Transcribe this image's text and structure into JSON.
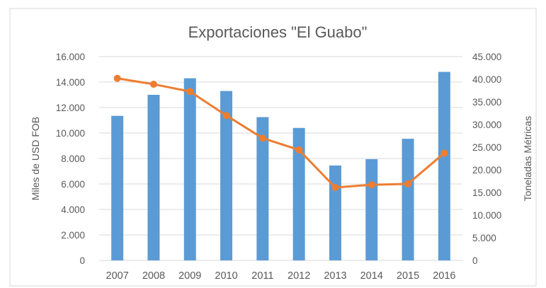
{
  "chart_data": {
    "type": "bar",
    "title": "Exportaciones \"El Guabo\"",
    "categories": [
      "2007",
      "2008",
      "2009",
      "2010",
      "2011",
      "2012",
      "2013",
      "2014",
      "2015",
      "2016"
    ],
    "series": [
      {
        "type": "bar",
        "axis": "left",
        "color": "#5B9BD5",
        "values": [
          11350,
          13000,
          14300,
          13300,
          11250,
          10400,
          7450,
          7950,
          9550,
          14800
        ]
      },
      {
        "type": "line",
        "axis": "right",
        "color": "#ED7D31",
        "markers": "circle",
        "values": [
          40200,
          38900,
          37300,
          32000,
          27000,
          24400,
          16100,
          16700,
          16900,
          23700
        ]
      }
    ],
    "ylabel_left": "Miles de USD FOB",
    "ylabel_right": "Toneladas Métricas",
    "ylim_left": [
      0,
      16000
    ],
    "ylim_right": [
      0,
      45000
    ],
    "yticks_left": {
      "values": [
        0,
        2000,
        4000,
        6000,
        8000,
        10000,
        12000,
        14000,
        16000
      ],
      "labels": [
        "0",
        "2.000",
        "4.000",
        "6.000",
        "8.000",
        "10.000",
        "12.000",
        "14.000",
        "16.000"
      ]
    },
    "yticks_right": {
      "values": [
        0,
        5000,
        10000,
        15000,
        20000,
        25000,
        30000,
        35000,
        40000,
        45000
      ],
      "labels": [
        "0",
        "5.000",
        "10.000",
        "15.000",
        "20.000",
        "25.000",
        "30.000",
        "35.000",
        "40.000",
        "45.000"
      ]
    },
    "grid": true,
    "legend": "none",
    "colors": {
      "text": "#595959",
      "grid": "#D9D9D9",
      "frame": "#D9D9D9"
    }
  }
}
